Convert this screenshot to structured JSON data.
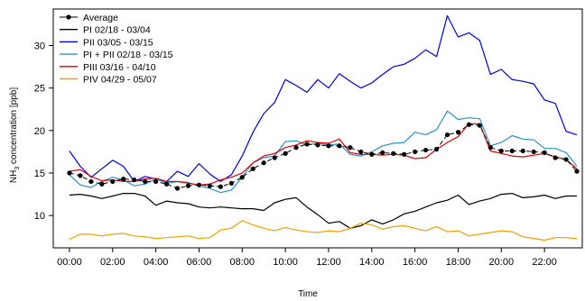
{
  "chart_data": {
    "type": "line",
    "xlabel": "Time",
    "ylabel_main": "NH",
    "ylabel_sub": "3",
    "ylabel_rest": " concentration [ppb]",
    "xlim": [
      -0.75,
      23.75
    ],
    "ylim": [
      6.2,
      34.3
    ],
    "x_ticks": [
      0,
      2,
      4,
      6,
      8,
      10,
      12,
      14,
      16,
      18,
      20,
      22
    ],
    "x_tick_labels": [
      "00:00",
      "02:00",
      "04:00",
      "06:00",
      "08:00",
      "10:00",
      "12:00",
      "14:00",
      "16:00",
      "18:00",
      "20:00",
      "22:00"
    ],
    "y_ticks": [
      10,
      15,
      20,
      25,
      30
    ],
    "y_tick_labels": [
      "10",
      "15",
      "20",
      "25",
      "30"
    ],
    "legend_position": "top-left",
    "x": [
      0,
      0.5,
      1,
      1.5,
      2,
      2.5,
      3,
      3.5,
      4,
      4.5,
      5,
      5.5,
      6,
      6.5,
      7,
      7.5,
      8,
      8.5,
      9,
      9.5,
      10,
      10.5,
      11,
      11.5,
      12,
      12.5,
      13,
      13.5,
      14,
      14.5,
      15,
      15.5,
      16,
      16.5,
      17,
      17.5,
      18,
      18.5,
      19,
      19.5,
      20,
      20.5,
      21,
      21.5,
      22,
      22.5,
      23,
      23.5
    ],
    "series": [
      {
        "name": "Average",
        "color": "#000000",
        "style": "average",
        "values": [
          15.0,
          14.7,
          14.0,
          13.7,
          14.0,
          14.3,
          14.2,
          14.0,
          14.0,
          13.7,
          13.2,
          13.5,
          13.6,
          13.5,
          13.4,
          13.8,
          14.5,
          15.5,
          16.2,
          16.8,
          17.3,
          18.0,
          18.4,
          18.3,
          18.2,
          18.2,
          18.0,
          17.5,
          17.2,
          17.4,
          17.3,
          17.2,
          17.5,
          17.7,
          17.8,
          19.5,
          19.8,
          20.7,
          20.6,
          18.0,
          17.6,
          17.6,
          17.6,
          17.5,
          17.4,
          16.8,
          16.6,
          15.2
        ]
      },
      {
        "name": "PI 02/18 - 03/04",
        "color": "#000000",
        "style": "line",
        "values": [
          12.4,
          12.5,
          12.3,
          12.0,
          12.3,
          12.6,
          12.6,
          12.3,
          11.2,
          11.7,
          11.5,
          11.4,
          11.0,
          10.9,
          11.0,
          10.9,
          10.8,
          10.8,
          10.6,
          11.5,
          11.9,
          12.1,
          11.0,
          10.1,
          9.1,
          9.3,
          8.5,
          8.8,
          9.5,
          9.0,
          9.5,
          10.2,
          10.5,
          11.0,
          11.5,
          11.8,
          12.4,
          11.3,
          11.7,
          12.0,
          12.5,
          12.6,
          12.1,
          12.2,
          12.4,
          12.0,
          12.3,
          12.3
        ]
      },
      {
        "name": "PII 03/05 - 03/15",
        "color": "#0000e0",
        "style": "line",
        "values": [
          17.6,
          15.8,
          14.5,
          15.5,
          16.5,
          15.8,
          14.0,
          14.6,
          14.3,
          14.0,
          15.2,
          14.6,
          16.1,
          14.9,
          14.0,
          14.8,
          17.0,
          19.8,
          22.0,
          23.3,
          26.0,
          25.3,
          24.5,
          26.0,
          25.0,
          26.7,
          25.8,
          25.0,
          25.6,
          26.6,
          27.5,
          27.8,
          28.5,
          29.5,
          28.7,
          33.5,
          31.0,
          31.5,
          30.6,
          26.6,
          27.2,
          26.0,
          25.8,
          25.5,
          23.6,
          23.2,
          19.9,
          19.5
        ]
      },
      {
        "name": "PI + PII 02/18 - 03/15",
        "color": "#2f8fd0",
        "style": "line",
        "values": [
          14.8,
          13.6,
          13.3,
          14.0,
          14.5,
          14.2,
          13.5,
          13.7,
          14.3,
          13.8,
          14.0,
          13.9,
          13.5,
          13.2,
          12.7,
          13.0,
          14.5,
          16.2,
          16.8,
          17.0,
          18.7,
          18.8,
          18.3,
          18.5,
          18.3,
          18.4,
          17.2,
          17.0,
          17.5,
          18.2,
          18.5,
          18.6,
          19.8,
          19.5,
          20.1,
          22.3,
          21.3,
          21.5,
          21.4,
          18.2,
          18.6,
          19.4,
          19.0,
          18.9,
          17.9,
          17.9,
          17.4,
          15.8
        ]
      },
      {
        "name": "PIII 03/16 - 04/10",
        "color": "#e00000",
        "style": "line",
        "values": [
          15.2,
          15.4,
          14.6,
          14.1,
          14.2,
          14.0,
          14.0,
          14.3,
          14.4,
          14.0,
          14.0,
          13.8,
          13.6,
          13.7,
          14.2,
          14.5,
          15.0,
          16.2,
          17.0,
          17.3,
          18.0,
          18.3,
          18.8,
          18.6,
          18.5,
          19.0,
          17.4,
          17.2,
          17.2,
          17.1,
          17.2,
          17.1,
          16.7,
          16.8,
          17.8,
          18.6,
          19.3,
          20.8,
          20.8,
          17.6,
          17.3,
          17.0,
          16.9,
          17.1,
          17.3,
          16.9,
          16.6,
          15.5
        ]
      },
      {
        "name": "PIV 04/29 - 05/07",
        "color": "#f0a000",
        "style": "line",
        "values": [
          7.2,
          7.8,
          7.8,
          7.6,
          7.8,
          7.9,
          7.6,
          7.5,
          7.3,
          7.4,
          7.5,
          7.6,
          7.3,
          7.4,
          8.3,
          8.5,
          9.4,
          8.9,
          8.5,
          8.2,
          8.6,
          8.3,
          8.1,
          8.0,
          8.2,
          8.1,
          8.5,
          9.1,
          8.9,
          8.4,
          8.7,
          8.8,
          8.5,
          8.2,
          8.7,
          8.1,
          8.2,
          7.6,
          7.8,
          8.0,
          8.2,
          8.1,
          7.5,
          7.3,
          7.1,
          7.4,
          7.4,
          7.3
        ]
      }
    ]
  }
}
